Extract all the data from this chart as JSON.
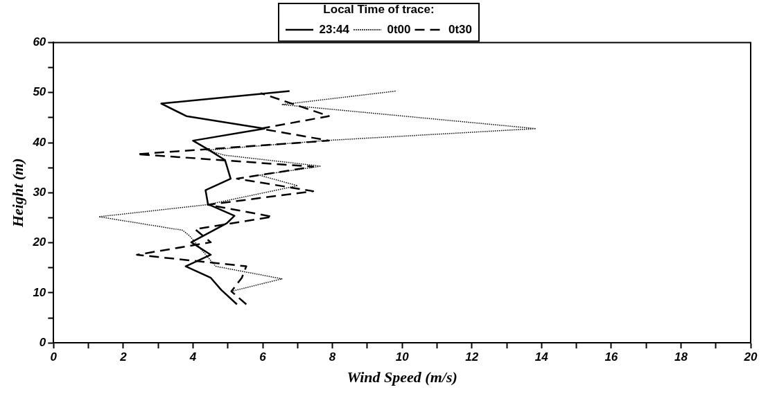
{
  "chart_data": {
    "type": "line",
    "xlabel": "Wind Speed (m/s)",
    "ylabel": "Height (m)",
    "legend_title": "Local Time of trace:",
    "legend": "top",
    "marker": "none",
    "grid": false,
    "xlim": [
      0,
      20
    ],
    "xticks": [
      0,
      {
        "value": 1,
        "label": null
      },
      2,
      {
        "value": 3,
        "label": null
      },
      4,
      {
        "value": 5,
        "label": null
      },
      6,
      {
        "value": 7,
        "label": null
      },
      8,
      {
        "value": 9,
        "label": null
      },
      10,
      {
        "value": 11,
        "label": null
      },
      12,
      {
        "value": 13,
        "label": null
      },
      14,
      {
        "value": 15,
        "label": null
      },
      16,
      {
        "value": 17,
        "label": null
      },
      18,
      {
        "value": 19,
        "label": null
      },
      20
    ],
    "ylim": [
      0,
      60
    ],
    "yticks": [
      0,
      {
        "value": 5,
        "label": null
      },
      10,
      {
        "value": 15,
        "label": null
      },
      20,
      {
        "value": 25,
        "label": null
      },
      30,
      {
        "value": 35,
        "label": null
      },
      40,
      {
        "value": 45,
        "label": null
      },
      50,
      {
        "value": 55,
        "label": null
      },
      60
    ],
    "series": [
      {
        "name": "23:44",
        "color": "#000000",
        "line_style": "solid",
        "x": [
          5.26,
          4.81,
          4.51,
          3.79,
          4.51,
          3.95,
          4.97,
          5.19,
          4.43,
          4.36,
          5.08,
          4.92,
          4.42,
          4.0,
          6.05,
          3.81,
          3.09,
          6.77
        ],
        "values": [
          7.7,
          10.6,
          13,
          15.3,
          17.6,
          20.1,
          23.9,
          25.4,
          27.7,
          30.5,
          32.8,
          36.5,
          38.7,
          40.4,
          42.8,
          45.3,
          47.8,
          50.3
        ]
      },
      {
        "name": "0t00",
        "color": "#000000",
        "line_style": "dotted",
        "x": [
          5.1,
          6.55,
          4.65,
          3.9,
          3.7,
          1.3,
          4.4,
          7.0,
          5.9,
          7.67,
          4.9,
          4.4,
          7.74,
          13.84,
          6.55,
          9.82
        ],
        "values": [
          10.3,
          12.8,
          15.3,
          21.4,
          22.5,
          25.2,
          27.6,
          31.4,
          33.5,
          35.3,
          37.5,
          38.5,
          40.4,
          42.8,
          47.6,
          50.3
        ]
      },
      {
        "name": "0t30",
        "color": "#000000",
        "line_style": "dashed",
        "x": [
          5.53,
          5.1,
          5.4,
          5.53,
          2.39,
          4.51,
          4.06,
          6.28,
          4.43,
          7.45,
          5.26,
          7.45,
          2.39,
          7.9,
          5.94,
          7.9,
          5.94
        ],
        "values": [
          7.7,
          10.3,
          13,
          15.3,
          17.6,
          20.1,
          22.7,
          25.2,
          27.6,
          30.3,
          32.8,
          35.2,
          37.7,
          40.4,
          42.8,
          45.3,
          49.9
        ]
      }
    ]
  }
}
